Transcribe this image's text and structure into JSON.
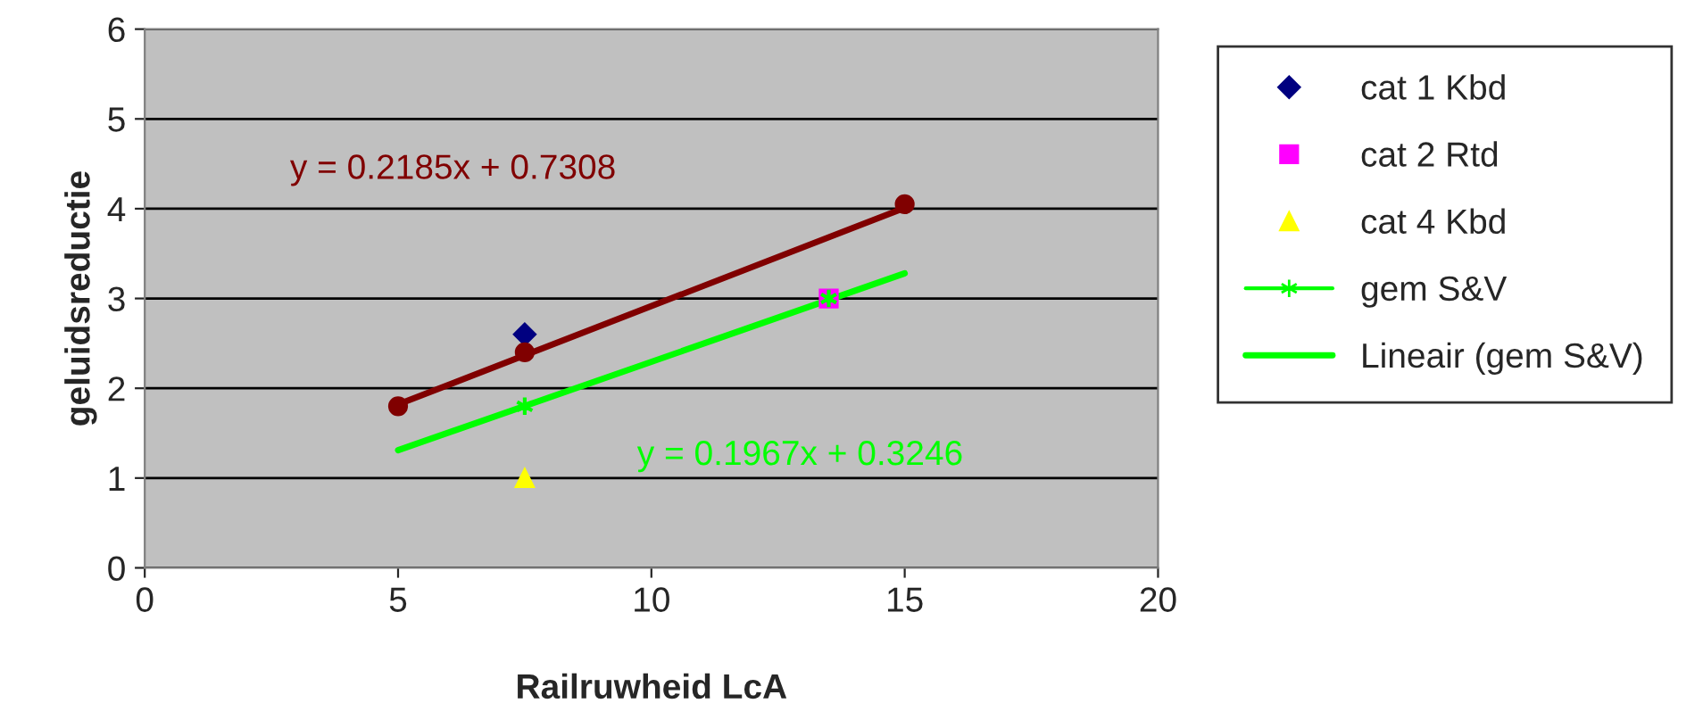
{
  "chart_data": {
    "type": "scatter",
    "xlabel": "Railruwheid LcA",
    "ylabel": "geluidsreductie",
    "xlim": [
      0,
      20
    ],
    "xticks": [
      0,
      5,
      10,
      15,
      20
    ],
    "ylim": [
      0,
      6
    ],
    "yticks": [
      0,
      1,
      2,
      3,
      4,
      5,
      6
    ],
    "grid": "y",
    "legend": "right",
    "series": [
      {
        "name": "cat 1 Kbd",
        "color": "#000080",
        "marker": "diamond",
        "x": [
          7.5
        ],
        "values": [
          2.6
        ]
      },
      {
        "name": "cat 2 Rtd",
        "color": "#ff00ff",
        "marker": "square",
        "x": [
          13.5
        ],
        "values": [
          3.0
        ]
      },
      {
        "name": "cat 4 Kbd",
        "color": "#ffff00",
        "marker": "triangle",
        "x": [
          7.5
        ],
        "values": [
          1.0
        ]
      },
      {
        "name": "gem S&V",
        "color": "#00ff00",
        "marker": "cross",
        "x": [
          7.5,
          13.5
        ],
        "values": [
          1.8,
          3.0
        ]
      },
      {
        "color": "#800000",
        "marker": "circle",
        "x": [
          5,
          7.5,
          15
        ],
        "values": [
          1.8,
          2.4,
          4.05
        ]
      },
      {
        "name": "Lineair (gem S&V)",
        "type": "line",
        "color": "#00ff00",
        "marker": "none",
        "x": [
          5,
          15
        ],
        "values": [
          1.31,
          3.28
        ]
      },
      {
        "type": "line",
        "color": "#800000",
        "marker": "none",
        "x": [
          5,
          15
        ],
        "values": [
          1.82,
          4.01
        ]
      }
    ],
    "annotations": [
      "y = 0.1967x + 0.3246",
      "y = 0.2185x + 0.7308"
    ]
  }
}
